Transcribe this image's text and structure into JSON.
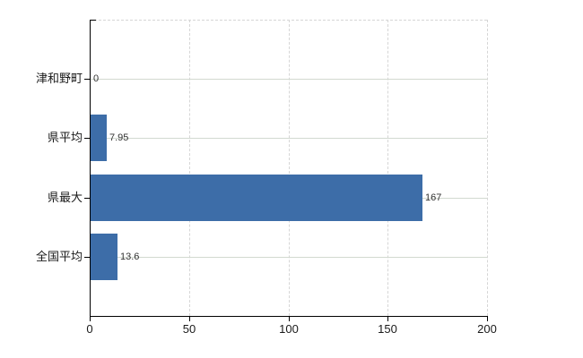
{
  "chart_data": {
    "type": "bar",
    "orientation": "horizontal",
    "title": "",
    "categories": [
      "津和野町",
      "県平均",
      "県最大",
      "全国平均"
    ],
    "values": [
      0,
      7.95,
      167,
      13.6
    ],
    "value_labels": [
      "0",
      "7.95",
      "167",
      "13.6"
    ],
    "xlabel": "",
    "ylabel": "",
    "xlim": [
      0,
      200
    ],
    "xticks": [
      0,
      50,
      100,
      150,
      200
    ],
    "xtick_labels": [
      "0",
      "50",
      "100",
      "150",
      "200"
    ],
    "legend": "none",
    "grid": {
      "vertical": "dashed",
      "top_border": "dashed",
      "horizontal_category_lines": "solid"
    },
    "colors": {
      "bar": "#3d6da8",
      "axis": "#000000",
      "grid_vertical": "#d6d6d6",
      "grid_horizontal": "#d2d9d0",
      "category_label": "#1a1a1a",
      "value_label": "#333333",
      "background": "#ffffff"
    }
  }
}
